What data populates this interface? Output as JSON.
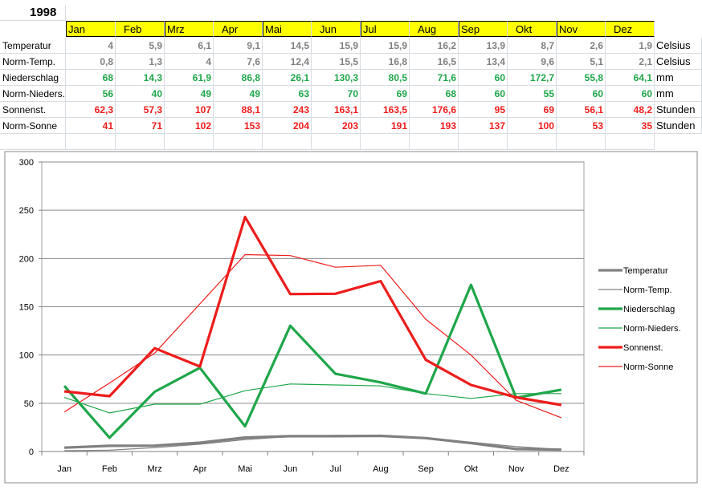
{
  "sheet": {
    "year": "1998",
    "months": [
      "Jan",
      "Feb",
      "Mrz",
      "Apr",
      "Mai",
      "Jun",
      "Jul",
      "Aug",
      "Sep",
      "Okt",
      "Nov",
      "Dez"
    ],
    "rows": [
      {
        "label": "Temperatur",
        "unit": "Celsius",
        "color": "#808080",
        "values": [
          "4",
          "5,9",
          "6,1",
          "9,1",
          "14,5",
          "15,9",
          "15,9",
          "16,2",
          "13,9",
          "8,7",
          "2,6",
          "1,9"
        ]
      },
      {
        "label": "Norm-Temp.",
        "unit": "Celsius",
        "color": "#808080",
        "values": [
          "0,8",
          "1,3",
          "4",
          "7,6",
          "12,4",
          "15,5",
          "16,8",
          "16,5",
          "13,4",
          "9,6",
          "5,1",
          "2,1"
        ]
      },
      {
        "label": "Niederschlag",
        "unit": "mm",
        "color": "#1fa64a",
        "values": [
          "68",
          "14,3",
          "61,9",
          "86,8",
          "26,1",
          "130,3",
          "80,5",
          "71,6",
          "60",
          "172,7",
          "55,8",
          "64,1"
        ]
      },
      {
        "label": "Norm-Nieders.",
        "unit": "mm",
        "color": "#1fa64a",
        "values": [
          "56",
          "40",
          "49",
          "49",
          "63",
          "70",
          "69",
          "68",
          "60",
          "55",
          "60",
          "60"
        ]
      },
      {
        "label": "Sonnenst.",
        "unit": "Stunden",
        "color": "#ee1c1c",
        "values": [
          "62,3",
          "57,3",
          "107",
          "88,1",
          "243",
          "163,1",
          "163,5",
          "176,6",
          "95",
          "69",
          "56,1",
          "48,2"
        ]
      },
      {
        "label": "Norm-Sonne",
        "unit": "Stunden",
        "color": "#ee1c1c",
        "values": [
          "41",
          "71",
          "102",
          "153",
          "204",
          "203",
          "191",
          "193",
          "137",
          "100",
          "53",
          "35"
        ]
      }
    ]
  },
  "chart_data": {
    "type": "line",
    "categories": [
      "Jan",
      "Feb",
      "Mrz",
      "Apr",
      "Mai",
      "Jun",
      "Jul",
      "Aug",
      "Sep",
      "Okt",
      "Nov",
      "Dez"
    ],
    "ylim": [
      0,
      300
    ],
    "yticks": [
      "0",
      "50",
      "100",
      "150",
      "200",
      "250",
      "300"
    ],
    "grid": true,
    "legend_position": "right",
    "series": [
      {
        "name": "Temperatur",
        "color": "#808080",
        "bold": true,
        "values": [
          4,
          5.9,
          6.1,
          9.1,
          14.5,
          15.9,
          15.9,
          16.2,
          13.9,
          8.7,
          2.6,
          1.9
        ]
      },
      {
        "name": "Norm-Temp.",
        "color": "#808080",
        "bold": false,
        "values": [
          0.8,
          1.3,
          4,
          7.6,
          12.4,
          15.5,
          16.8,
          16.5,
          13.4,
          9.6,
          5.1,
          2.1
        ]
      },
      {
        "name": "Niederschlag",
        "color": "#1fa64a",
        "bold": true,
        "values": [
          68,
          14.3,
          61.9,
          86.8,
          26.1,
          130.3,
          80.5,
          71.6,
          60,
          172.7,
          55.8,
          64.1
        ]
      },
      {
        "name": "Norm-Nieders.",
        "color": "#1fa64a",
        "bold": false,
        "values": [
          56,
          40,
          49,
          49,
          63,
          70,
          69,
          68,
          60,
          55,
          60,
          60
        ]
      },
      {
        "name": "Sonnenst.",
        "color": "#ee1c1c",
        "bold": true,
        "values": [
          62.3,
          57.3,
          107,
          88.1,
          243,
          163.1,
          163.5,
          176.6,
          95,
          69,
          56.1,
          48.2
        ]
      },
      {
        "name": "Norm-Sonne",
        "color": "#ee1c1c",
        "bold": false,
        "values": [
          41,
          71,
          102,
          153,
          204,
          203,
          191,
          193,
          137,
          100,
          53,
          35
        ]
      }
    ]
  }
}
